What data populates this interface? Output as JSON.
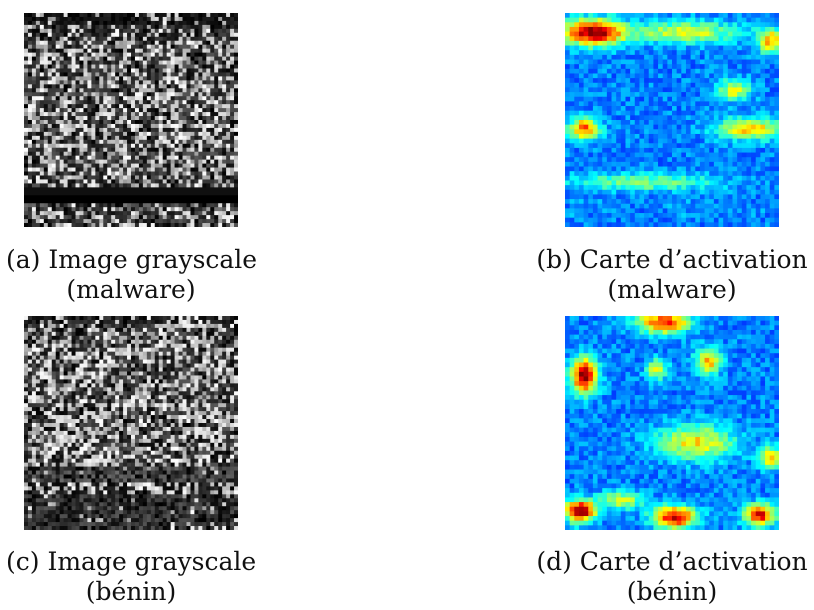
{
  "figure": {
    "panels": [
      {
        "id": "a",
        "kind": "grayscale",
        "caption_line1": "(a) Image grayscale",
        "caption_line2": "(malware)"
      },
      {
        "id": "b",
        "kind": "heatmap",
        "caption_line1": "(b) Carte d’activation",
        "caption_line2": "(malware)"
      },
      {
        "id": "c",
        "kind": "grayscale",
        "caption_line1": "(c) Image grayscale",
        "caption_line2": "(bénin)"
      },
      {
        "id": "d",
        "kind": "heatmap",
        "caption_line1": "(d) Carte d’activation",
        "caption_line2": "(bénin)"
      }
    ]
  }
}
